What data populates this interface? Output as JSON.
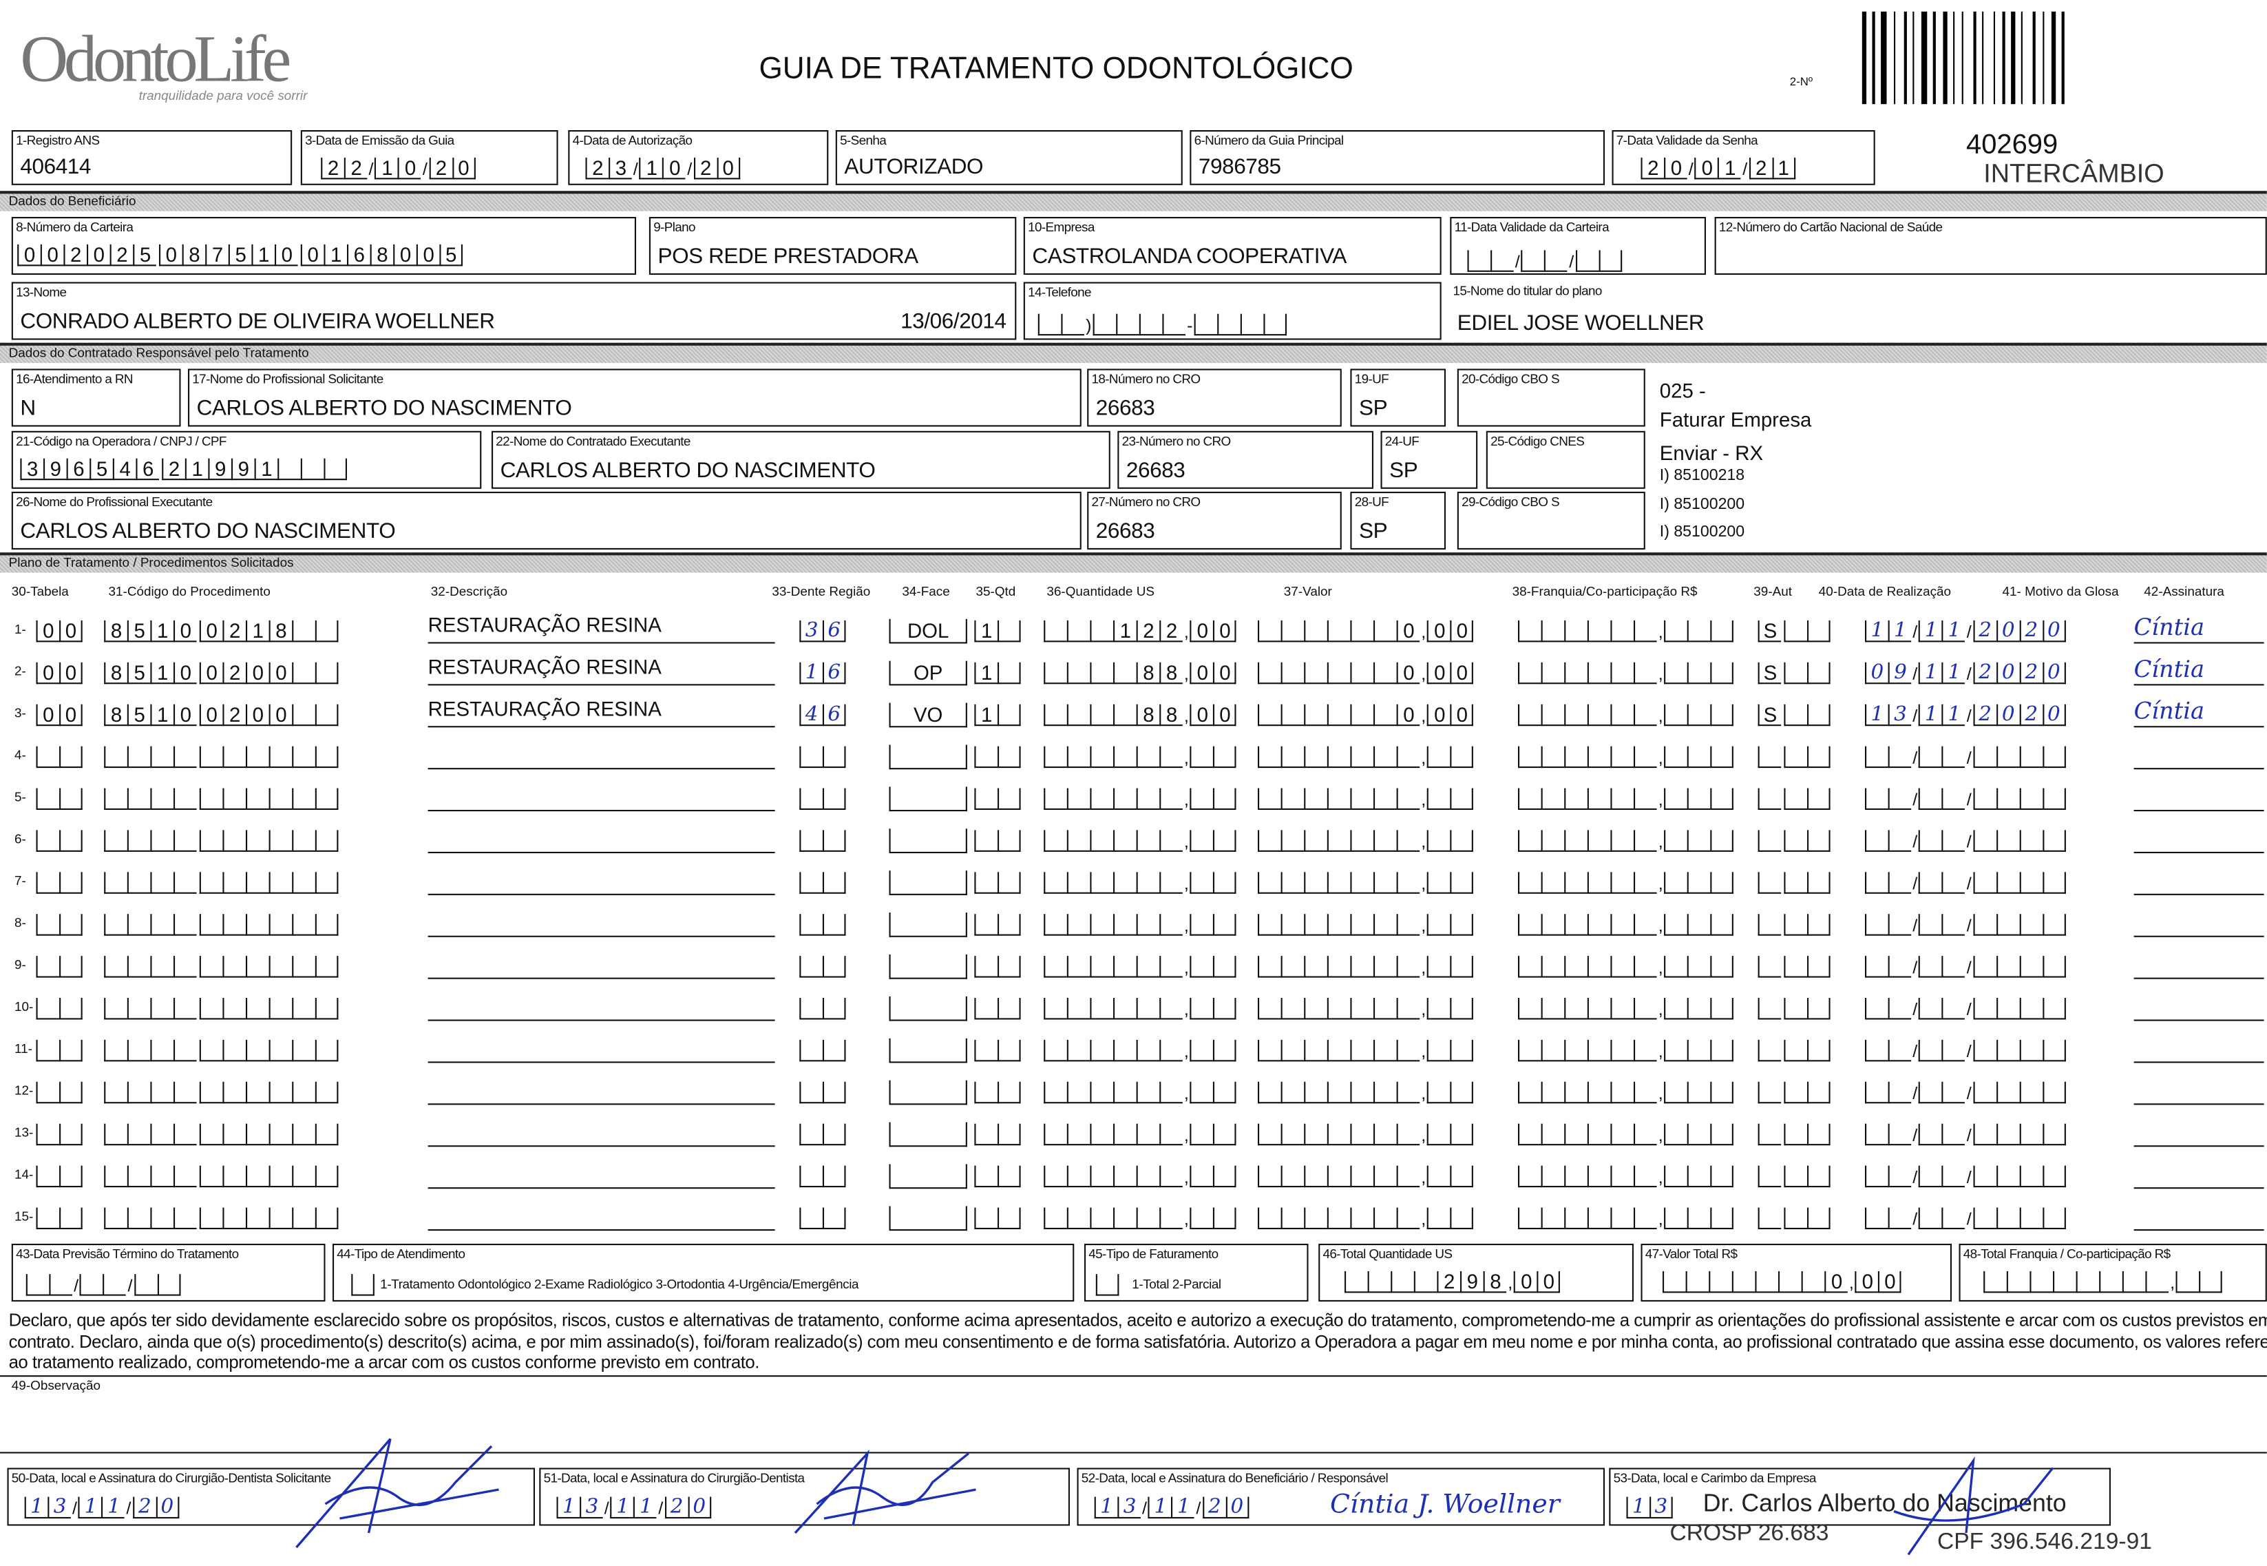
{
  "header": {
    "logo_text": "OdontoLife",
    "logo_tagline": "tranquilidade para você sorrir",
    "title": "GUIA DE TRATAMENTO ODONTOLÓGICO",
    "guide_number_label": "2-Nº",
    "guide_number": "402699",
    "exchange": "INTERCÂMBIO"
  },
  "guide": {
    "registro_ans": {
      "label": "1-Registro ANS",
      "value": "406414"
    },
    "data_emissao": {
      "label": "3-Data de Emissão da Guia",
      "value": "22/10/20"
    },
    "data_autorizacao": {
      "label": "4-Data de Autorização",
      "value": "23/10/20"
    },
    "senha": {
      "label": "5-Senha",
      "value": "AUTORIZADO"
    },
    "guia_principal": {
      "label": "6-Número da Guia Principal",
      "value": "7986785"
    },
    "validade_senha": {
      "label": "7-Data Validade da Senha",
      "value": "20/01/21"
    }
  },
  "beneficiario": {
    "section": "Dados do Beneficiário",
    "carteira": {
      "label": "8-Número da Carteira",
      "value": "0020250875100168005"
    },
    "plano": {
      "label": "9-Plano",
      "value": "POS REDE PRESTADORA"
    },
    "empresa": {
      "label": "10-Empresa",
      "value": "CASTROLANDA COOPERATIVA"
    },
    "validade_carteira": {
      "label": "11-Data Validade da Carteira",
      "value": ""
    },
    "cartao_nacional": {
      "label": "12-Número do Cartão Nacional de Saúde",
      "value": ""
    },
    "nome": {
      "label": "13-Nome",
      "value": "CONRADO ALBERTO DE OLIVEIRA WOELLNER",
      "date": "13/06/2014"
    },
    "telefone": {
      "label": "14-Telefone",
      "value": ""
    },
    "titular": {
      "label": "15-Nome do titular do plano",
      "value": "EDIEL JOSE WOELLNER"
    }
  },
  "contratado": {
    "section": "Dados do Contratado Responsável pelo Tratamento",
    "atendimento_rn": {
      "label": "16-Atendimento a RN",
      "value": "N"
    },
    "prof_solicitante": {
      "label": "17-Nome do Profissional Solicitante",
      "value": "CARLOS ALBERTO DO NASCIMENTO"
    },
    "cro_18": {
      "label": "18-Número no CRO",
      "value": "26683"
    },
    "uf_19": {
      "label": "19-UF",
      "value": "SP"
    },
    "cbos_20": {
      "label": "20-Código CBO S",
      "value": ""
    },
    "codigo_operadora": {
      "label": "21-Código na Operadora / CNPJ / CPF",
      "value": "39654621991"
    },
    "contratado_exec": {
      "label": "22-Nome do Contratado Executante",
      "value": "CARLOS ALBERTO DO NASCIMENTO"
    },
    "cro_23": {
      "label": "23-Número no CRO",
      "value": "26683"
    },
    "uf_24": {
      "label": "24-UF",
      "value": "SP"
    },
    "cnes": {
      "label": "25-Código CNES",
      "value": ""
    },
    "prof_exec": {
      "label": "26-Nome do Profissional Executante",
      "value": "CARLOS ALBERTO DO NASCIMENTO"
    },
    "cro_27": {
      "label": "27-Número no CRO",
      "value": "26683"
    },
    "uf_28": {
      "label": "28-UF",
      "value": "SP"
    },
    "cbos_29": {
      "label": "29-Código CBO S",
      "value": ""
    },
    "notes": [
      "025 -",
      "Faturar Empresa",
      "Enviar - RX",
      "I) 85100218",
      "I) 85100200",
      "I) 85100200"
    ]
  },
  "plano": {
    "section": "Plano de Tratamento / Procedimentos Solicitados",
    "columns": [
      "30-Tabela",
      "31-Código do Procedimento",
      "32-Descrição",
      "33-Dente Região",
      "34-Face",
      "35-Qtd",
      "36-Quantidade US",
      "37-Valor",
      "38-Franquia/Co-participação R$",
      "39-Aut",
      "40-Data de Realização",
      "41- Motivo da Glosa",
      "42-Assinatura"
    ],
    "rows": [
      {
        "tabela": "00",
        "codigo": "85100218",
        "descricao": "RESTAURAÇÃO RESINA",
        "dente": "36",
        "face": "DOL",
        "qtd": "1",
        "qtd_us": "122,00",
        "valor": "0,00",
        "franquia": "",
        "aut": "S",
        "data": "11/11/2020",
        "assinatura": "Cíntia"
      },
      {
        "tabela": "00",
        "codigo": "85100200",
        "descricao": "RESTAURAÇÃO RESINA",
        "dente": "16",
        "face": "OP",
        "qtd": "1",
        "qtd_us": "88,00",
        "valor": "0,00",
        "franquia": "",
        "aut": "S",
        "data": "09/11/2020",
        "assinatura": "Cíntia"
      },
      {
        "tabela": "00",
        "codigo": "85100200",
        "descricao": "RESTAURAÇÃO RESINA",
        "dente": "46",
        "face": "VO",
        "qtd": "1",
        "qtd_us": "88,00",
        "valor": "0,00",
        "franquia": "",
        "aut": "S",
        "data": "13/11/2020",
        "assinatura": "Cíntia"
      },
      {},
      {},
      {},
      {},
      {},
      {},
      {},
      {},
      {},
      {},
      {},
      {}
    ]
  },
  "totais": {
    "previsao": {
      "label": "43-Data Previsão Término do Tratamento",
      "value": ""
    },
    "tipo_atendimento": {
      "label": "44-Tipo de Atendimento",
      "options": "1-Tratamento Odontológico  2-Exame Radiológico  3-Ortodontia  4-Urgência/Emergência"
    },
    "tipo_faturamento": {
      "label": "45-Tipo de Faturamento",
      "options": "1-Total  2-Parcial"
    },
    "total_us": {
      "label": "46-Total Quantidade US",
      "value": "298,00"
    },
    "valor_total": {
      "label": "47-Valor Total R$",
      "value": "0,00"
    },
    "total_franquia": {
      "label": "48-Total Franquia / Co-participação R$",
      "value": ""
    }
  },
  "declaracao": "Declaro, que após ter sido devidamente esclarecido sobre os propósitos, riscos, custos e alternativas de tratamento, conforme acima apresentados, aceito e autorizo a execução do tratamento, comprometendo-me a cumprir as orientações do profissional assistente e arcar com os custos previstos em contrato. Declaro, ainda que o(s) procedimento(s) descrito(s) acima, e por mim assinado(s), foi/foram realizado(s) com meu consentimento e de forma satisfatória. Autorizo a Operadora a pagar em meu nome e por minha conta, ao profissional contratado que assina esse documento, os valores referentes ao tratamento realizado, comprometendo-me a arcar com os custos conforme previsto em contrato.",
  "observacao": {
    "label": "49-Observação",
    "value": ""
  },
  "assinaturas": {
    "solicitante": {
      "label": "50-Data, local e Assinatura do Cirurgião-Dentista Solicitante",
      "date": "13/11/20"
    },
    "executante": {
      "label": "51-Data, local e Assinatura do Cirurgião-Dentista",
      "date": "13/11/20"
    },
    "beneficiario": {
      "label": "52-Data, local e Assinatura do Beneficiário / Responsável",
      "date": "13/11/20",
      "signature": "Cíntia J. Woellner"
    },
    "empresa": {
      "label": "53-Data, local e Carimbo da Empresa",
      "date": "13",
      "stamp_name": "Dr. Carlos Alberto do Nascimento",
      "stamp_cro": "CROSP 26.683",
      "stamp_cpf": "CPF 396.546.219-91"
    }
  },
  "colors": {
    "ink": "#111111",
    "pen": "#1c2fb5",
    "band": "#c8c8c8"
  }
}
